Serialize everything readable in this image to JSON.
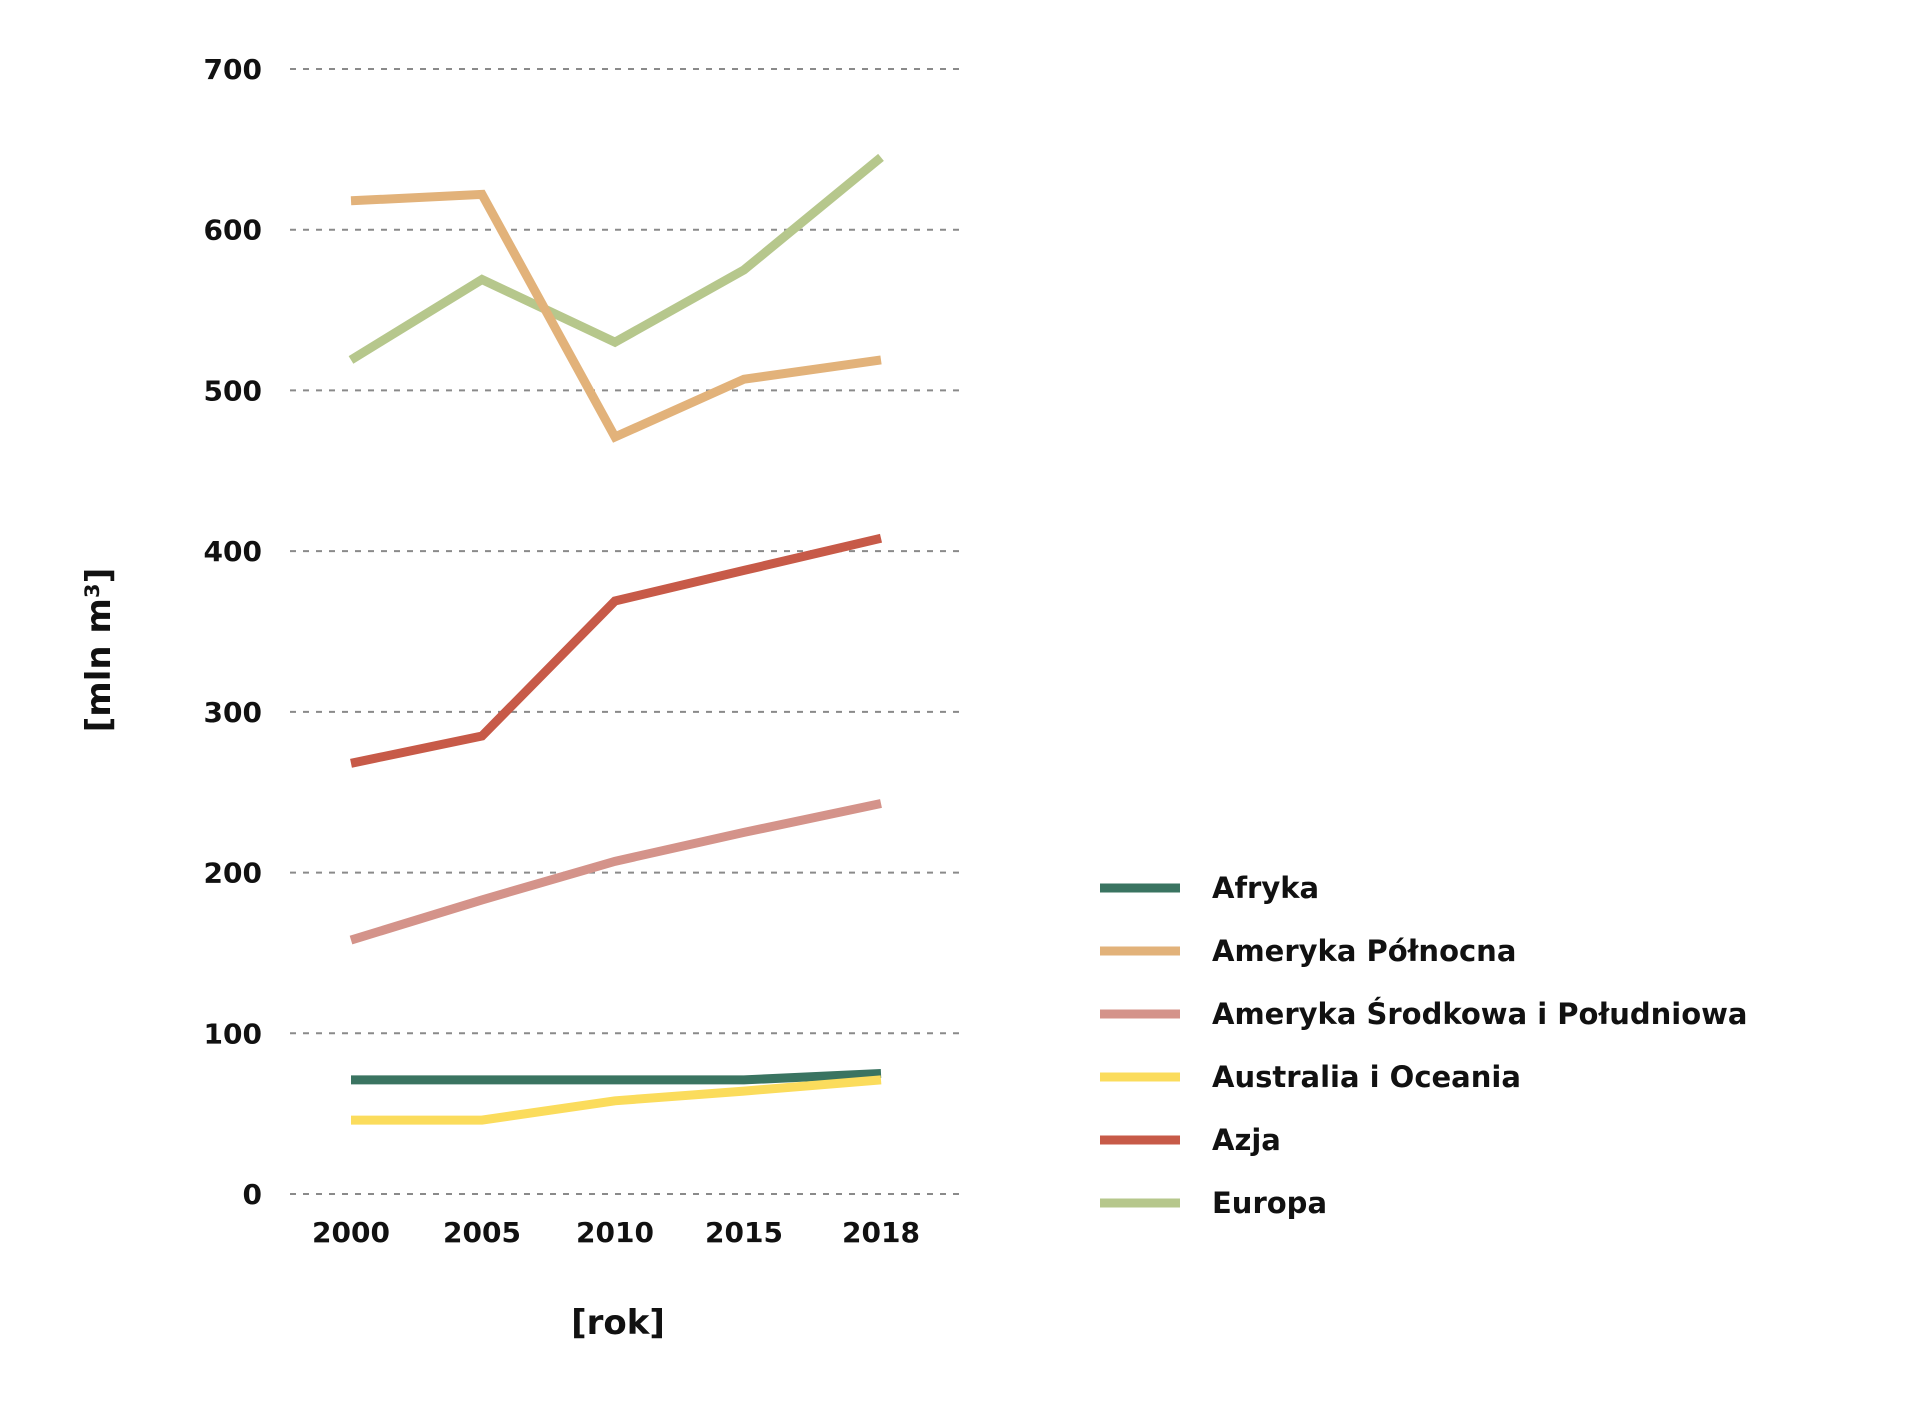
{
  "chart_data": {
    "type": "line",
    "title": "",
    "xlabel": "[rok]",
    "ylabel": "[mln m³]",
    "categories": [
      "2000",
      "2005",
      "2010",
      "2015",
      "2018"
    ],
    "x": [
      2000,
      2005,
      2010,
      2015,
      2018
    ],
    "ylim": [
      0,
      700
    ],
    "yticks": [
      0,
      100,
      200,
      300,
      400,
      500,
      600,
      700
    ],
    "grid": true,
    "legend_position": "bottom-right",
    "series": [
      {
        "name": "Afryka",
        "color": "#3a7461",
        "values": [
          71,
          71,
          71,
          71,
          75
        ]
      },
      {
        "name": "Ameryka Północna",
        "color": "#e2b27a",
        "values": [
          618,
          622,
          471,
          507,
          519
        ]
      },
      {
        "name": "Ameryka Środkowa i Południowa",
        "color": "#d4938a",
        "values": [
          158,
          183,
          207,
          225,
          243
        ]
      },
      {
        "name": "Australia i Oceania",
        "color": "#fbdc5c",
        "values": [
          46,
          46,
          58,
          64,
          71
        ]
      },
      {
        "name": "Azja",
        "color": "#c75a48",
        "values": [
          268,
          285,
          369,
          388,
          408
        ]
      },
      {
        "name": "Europa",
        "color": "#b6c78c",
        "values": [
          519,
          569,
          530,
          575,
          645
        ]
      }
    ]
  }
}
